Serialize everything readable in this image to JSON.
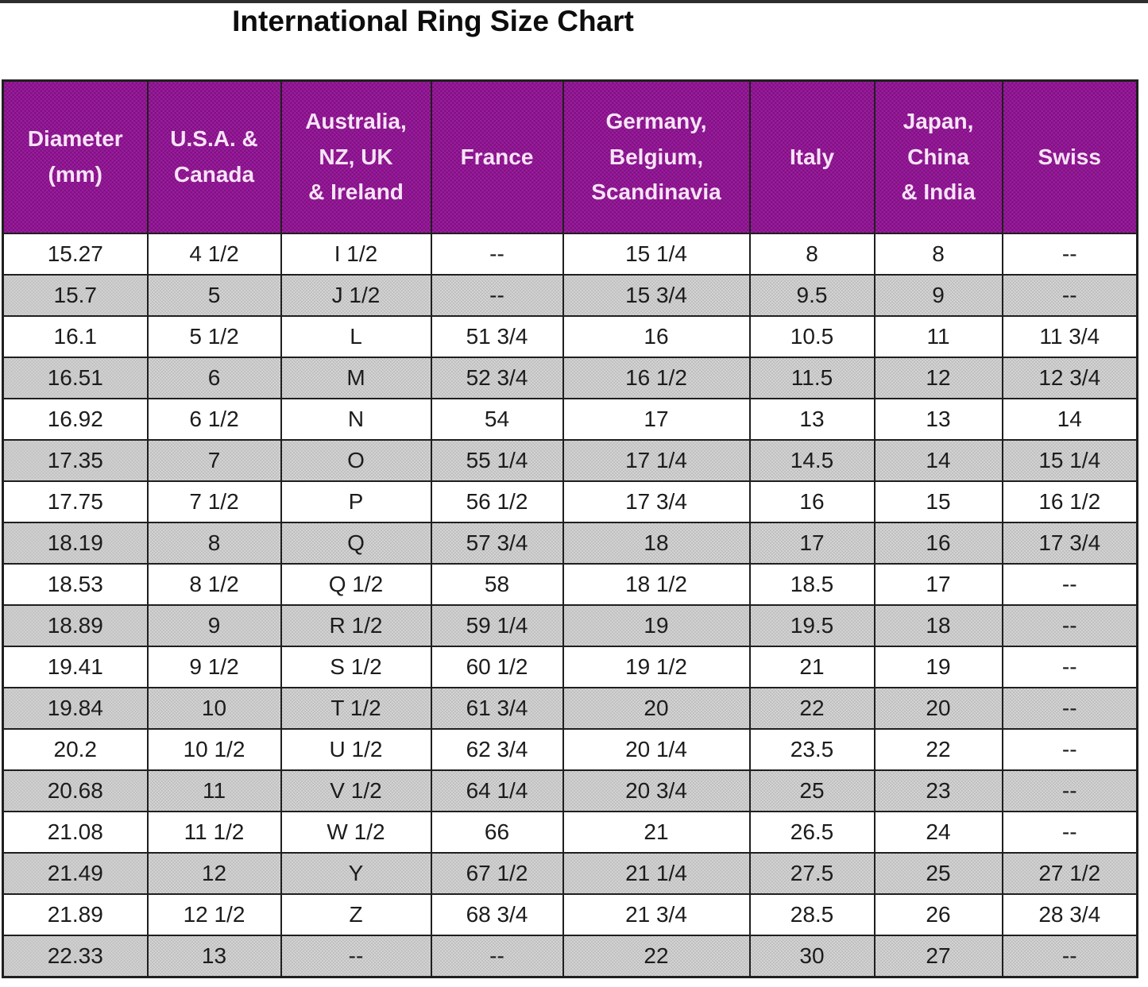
{
  "title": "International Ring Size Chart",
  "colors": {
    "header_background": "#8e1490",
    "header_text": "#f6e4f6",
    "stripe_gray": "#c8c8c8",
    "border": "#1f1f1f"
  },
  "chart_data": {
    "type": "table",
    "title": "International Ring Size Chart",
    "columns": [
      "Diameter\n(mm)",
      "U.S.A. &\nCanada",
      "Australia,\nNZ, UK\n& Ireland",
      "France",
      "Germany,\nBelgium,\nScandinavia",
      "Italy",
      "Japan,\nChina\n& India",
      "Swiss"
    ],
    "rows": [
      [
        "15.27",
        "4 1/2",
        "I 1/2",
        "--",
        "15 1/4",
        "8",
        "8",
        "--"
      ],
      [
        "15.7",
        "5",
        "J 1/2",
        "--",
        "15 3/4",
        "9.5",
        "9",
        "--"
      ],
      [
        "16.1",
        "5 1/2",
        "L",
        "51 3/4",
        "16",
        "10.5",
        "11",
        "11 3/4"
      ],
      [
        "16.51",
        "6",
        "M",
        "52 3/4",
        "16 1/2",
        "11.5",
        "12",
        "12 3/4"
      ],
      [
        "16.92",
        "6 1/2",
        "N",
        "54",
        "17",
        "13",
        "13",
        "14"
      ],
      [
        "17.35",
        "7",
        "O",
        "55 1/4",
        "17 1/4",
        "14.5",
        "14",
        "15 1/4"
      ],
      [
        "17.75",
        "7 1/2",
        "P",
        "56 1/2",
        "17 3/4",
        "16",
        "15",
        "16 1/2"
      ],
      [
        "18.19",
        "8",
        "Q",
        "57 3/4",
        "18",
        "17",
        "16",
        "17 3/4"
      ],
      [
        "18.53",
        "8 1/2",
        "Q 1/2",
        "58",
        "18 1/2",
        "18.5",
        "17",
        "--"
      ],
      [
        "18.89",
        "9",
        "R 1/2",
        "59 1/4",
        "19",
        "19.5",
        "18",
        "--"
      ],
      [
        "19.41",
        "9 1/2",
        "S 1/2",
        "60 1/2",
        "19 1/2",
        "21",
        "19",
        "--"
      ],
      [
        "19.84",
        "10",
        "T 1/2",
        "61 3/4",
        "20",
        "22",
        "20",
        "--"
      ],
      [
        "20.2",
        "10 1/2",
        "U 1/2",
        "62 3/4",
        "20 1/4",
        "23.5",
        "22",
        "--"
      ],
      [
        "20.68",
        "11",
        "V 1/2",
        "64 1/4",
        "20 3/4",
        "25",
        "23",
        "--"
      ],
      [
        "21.08",
        "11 1/2",
        "W 1/2",
        "66",
        "21",
        "26.5",
        "24",
        "--"
      ],
      [
        "21.49",
        "12",
        "Y",
        "67 1/2",
        "21 1/4",
        "27.5",
        "25",
        "27 1/2"
      ],
      [
        "21.89",
        "12 1/2",
        "Z",
        "68 3/4",
        "21 3/4",
        "28.5",
        "26",
        "28 3/4"
      ],
      [
        "22.33",
        "13",
        "--",
        "--",
        "22",
        "30",
        "27",
        "--"
      ]
    ]
  }
}
